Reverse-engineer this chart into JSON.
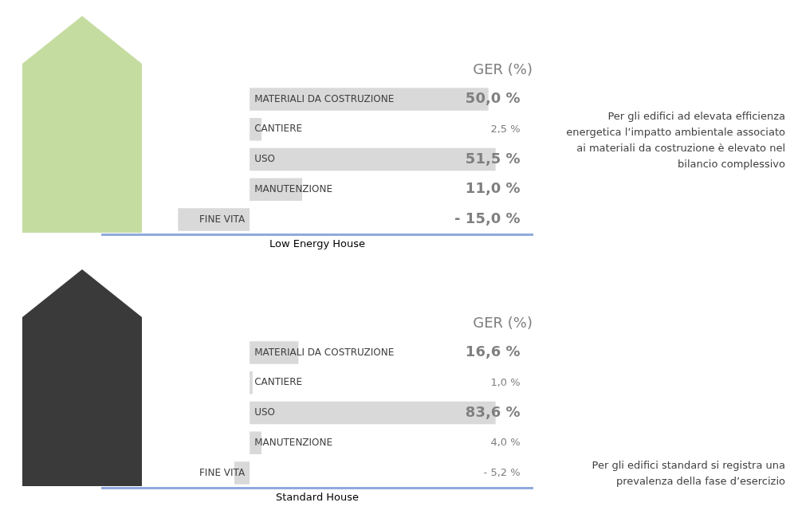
{
  "chart_data": [
    {
      "type": "bar",
      "orientation": "horizontal",
      "title": "GER (%)",
      "xlabel": "Low Energy House",
      "categories": [
        "MATERIALI DA COSTRUZIONE",
        "CANTIERE",
        "USO",
        "MANUTENZIONE",
        "FINE VITA"
      ],
      "values": [
        50.0,
        2.5,
        51.5,
        11.0,
        -15.0
      ],
      "value_labels": [
        "50,0 %",
        "2,5 %",
        "51,5 %",
        "11,0 %",
        "- 15,0 %"
      ],
      "color": "#d9d9d9",
      "tick_labels": false,
      "grid": false,
      "legend": false,
      "annotations": [
        "Per gli edifici ad elevata efficienza energetica l’impatto ambientale associato ai materiali da costruzione è elevato nel bilancio complessivo"
      ]
    },
    {
      "type": "bar",
      "orientation": "horizontal",
      "title": "GER (%)",
      "xlabel": "Standard House",
      "categories": [
        "MATERIALI DA COSTRUZIONE",
        "CANTIERE",
        "USO",
        "MANUTENZIONE",
        "FINE VITA"
      ],
      "values": [
        16.6,
        1.0,
        83.6,
        4.0,
        -5.2
      ],
      "value_labels": [
        "16,6 %",
        "1,0 %",
        "83,6 %",
        "4,0 %",
        "- 5,2 %"
      ],
      "color": "#d9d9d9",
      "tick_labels": false,
      "grid": false,
      "legend": false,
      "annotations": [
        "Per gli edifici standard si registra una prevalenza della fase d’esercizio"
      ]
    }
  ]
}
